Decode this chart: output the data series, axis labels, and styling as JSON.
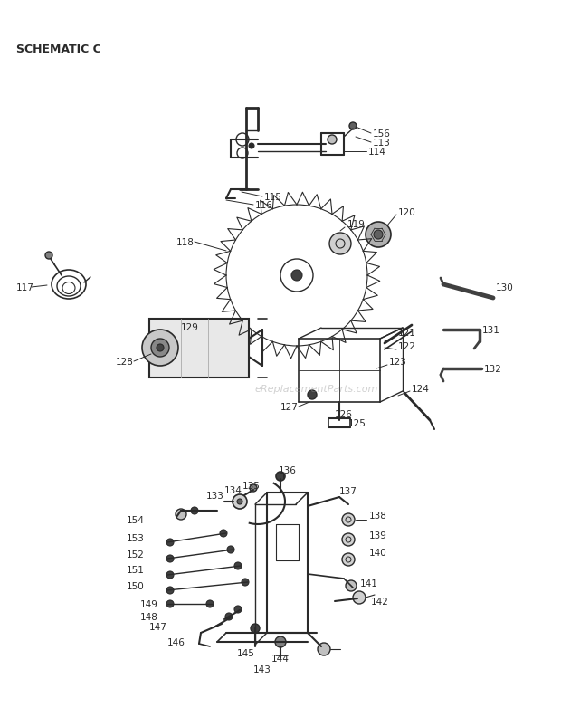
{
  "title": "SCHEMATIC C",
  "bg_color": "#ffffff",
  "text_color": "#2a2a2a",
  "watermark": "eReplacementParts.com",
  "figsize": [
    6.2,
    8.04
  ],
  "dpi": 100
}
